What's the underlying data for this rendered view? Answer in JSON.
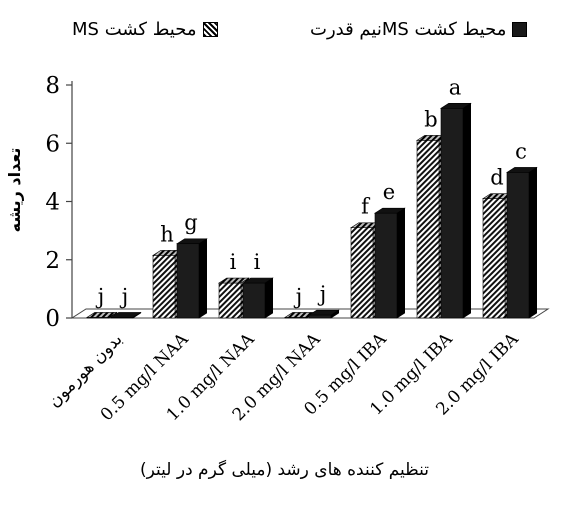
{
  "chart_data": {
    "type": "bar",
    "title": "",
    "xlabel": "تنظیم کننده های رشد (میلی گرم در لیتر)",
    "ylabel": "تعداد ریشه",
    "ylim": [
      0,
      8
    ],
    "yticks": [
      "0",
      "2",
      "4",
      "6",
      "8"
    ],
    "grid": false,
    "legend_position": "top",
    "categories": [
      "بدون هورمون",
      "0.5 mg/l NAA",
      "1.0 mg/l NAA",
      "2.0 mg/l NAA",
      "0.5 mg/l IBA",
      "1.0 mg/l IBA",
      "2.0 mg/l IBA"
    ],
    "series": [
      {
        "name": "محیط کشت MS",
        "pattern": "hatched",
        "color": "#ffffff",
        "values": [
          0.02,
          2.15,
          1.2,
          0.02,
          3.1,
          6.1,
          4.1
        ],
        "labels": [
          "j",
          "h",
          "i",
          "j",
          "f",
          "b",
          "d"
        ]
      },
      {
        "name": "محیط کشت MSنیم قدرت",
        "pattern": "solid",
        "color": "#1c1c1c",
        "values": [
          0.02,
          2.55,
          1.2,
          0.1,
          3.6,
          7.2,
          5.0
        ],
        "labels": [
          "j",
          "g",
          "i",
          "j",
          "e",
          "a",
          "c"
        ]
      }
    ]
  }
}
